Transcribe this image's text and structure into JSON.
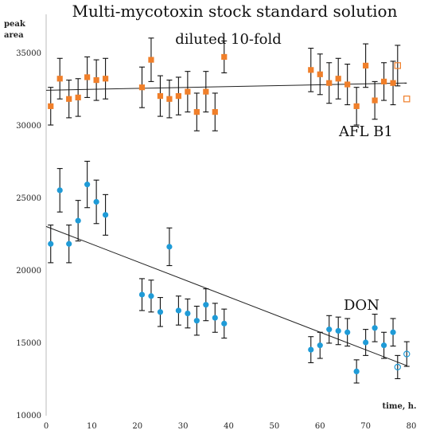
{
  "chart_data": {
    "type": "scatter",
    "title": "Multi-mycotoxin stock standard solution",
    "subtitle": "diluted 10-fold",
    "ylabel": [
      "peak",
      "area"
    ],
    "xlabel": "time, h.",
    "xlim": [
      0,
      80
    ],
    "ylim": [
      10000,
      36000
    ],
    "x_ticks": [
      "0",
      "10",
      "20",
      "30",
      "40",
      "50",
      "60",
      "70",
      "80"
    ],
    "y_ticks": [
      "10000",
      "15000",
      "20000",
      "25000",
      "30000",
      "35000"
    ],
    "grid": false,
    "series": [
      {
        "name": "AFL B1",
        "color": "#f07f2a",
        "marker": "square",
        "points": [
          {
            "x": 1,
            "y": 31300,
            "err": 1300
          },
          {
            "x": 3,
            "y": 33200,
            "err": 1400
          },
          {
            "x": 5,
            "y": 31800,
            "err": 1300
          },
          {
            "x": 7,
            "y": 31900,
            "err": 1300
          },
          {
            "x": 9,
            "y": 33300,
            "err": 1400
          },
          {
            "x": 11,
            "y": 33100,
            "err": 1400
          },
          {
            "x": 13,
            "y": 33200,
            "err": 1400
          },
          {
            "x": 21,
            "y": 32600,
            "err": 1400
          },
          {
            "x": 23,
            "y": 34500,
            "err": 1500
          },
          {
            "x": 25,
            "y": 32000,
            "err": 1400
          },
          {
            "x": 27,
            "y": 31800,
            "err": 1300
          },
          {
            "x": 29,
            "y": 32000,
            "err": 1300
          },
          {
            "x": 31,
            "y": 32300,
            "err": 1400
          },
          {
            "x": 33,
            "y": 30900,
            "err": 1300
          },
          {
            "x": 35,
            "y": 32300,
            "err": 1400
          },
          {
            "x": 37,
            "y": 30900,
            "err": 1300
          },
          {
            "x": 39,
            "y": 34700,
            "err": 1100
          },
          {
            "x": 58,
            "y": 33800,
            "err": 1500
          },
          {
            "x": 60,
            "y": 33500,
            "err": 1400
          },
          {
            "x": 62,
            "y": 32900,
            "err": 1400
          },
          {
            "x": 64,
            "y": 33200,
            "err": 1400
          },
          {
            "x": 66,
            "y": 32800,
            "err": 1400
          },
          {
            "x": 68,
            "y": 31300,
            "err": 1300
          },
          {
            "x": 70,
            "y": 34100,
            "err": 1500
          },
          {
            "x": 72,
            "y": 31700,
            "err": 1300
          },
          {
            "x": 74,
            "y": 33000,
            "err": 1300
          },
          {
            "x": 76,
            "y": 32900,
            "err": 1500
          },
          {
            "x": 77,
            "y": 34100,
            "err": 1400,
            "open": true
          },
          {
            "x": 79,
            "y": 31800,
            "err": 0,
            "open": true
          }
        ],
        "trend": {
          "x1": 0,
          "y1": 32400,
          "x2": 79,
          "y2": 32900
        }
      },
      {
        "name": "DON",
        "color": "#1f9bd7",
        "marker": "circle",
        "points": [
          {
            "x": 1,
            "y": 21800,
            "err": 1300
          },
          {
            "x": 3,
            "y": 25500,
            "err": 1500
          },
          {
            "x": 5,
            "y": 21800,
            "err": 1300
          },
          {
            "x": 7,
            "y": 23400,
            "err": 1400
          },
          {
            "x": 9,
            "y": 25900,
            "err": 1600
          },
          {
            "x": 11,
            "y": 24700,
            "err": 1500
          },
          {
            "x": 13,
            "y": 23800,
            "err": 1400
          },
          {
            "x": 21,
            "y": 18300,
            "err": 1100
          },
          {
            "x": 23,
            "y": 18200,
            "err": 1100
          },
          {
            "x": 25,
            "y": 17100,
            "err": 1000
          },
          {
            "x": 27,
            "y": 21600,
            "err": 1300
          },
          {
            "x": 29,
            "y": 17200,
            "err": 1000
          },
          {
            "x": 31,
            "y": 17000,
            "err": 1000
          },
          {
            "x": 33,
            "y": 16500,
            "err": 1000
          },
          {
            "x": 35,
            "y": 17600,
            "err": 1100
          },
          {
            "x": 37,
            "y": 16700,
            "err": 1000
          },
          {
            "x": 39,
            "y": 16300,
            "err": 1000
          },
          {
            "x": 58,
            "y": 14500,
            "err": 900
          },
          {
            "x": 60,
            "y": 14800,
            "err": 900
          },
          {
            "x": 62,
            "y": 15900,
            "err": 950
          },
          {
            "x": 64,
            "y": 15800,
            "err": 950
          },
          {
            "x": 66,
            "y": 15700,
            "err": 950
          },
          {
            "x": 68,
            "y": 13000,
            "err": 800
          },
          {
            "x": 70,
            "y": 15000,
            "err": 900
          },
          {
            "x": 72,
            "y": 16000,
            "err": 950
          },
          {
            "x": 74,
            "y": 14800,
            "err": 900
          },
          {
            "x": 76,
            "y": 15700,
            "err": 950
          },
          {
            "x": 77,
            "y": 13300,
            "err": 800,
            "open": true
          },
          {
            "x": 79,
            "y": 14200,
            "err": 850,
            "open": true
          }
        ],
        "trend": {
          "x1": 0,
          "y1": 23000,
          "x2": 79,
          "y2": 13400
        }
      }
    ]
  }
}
